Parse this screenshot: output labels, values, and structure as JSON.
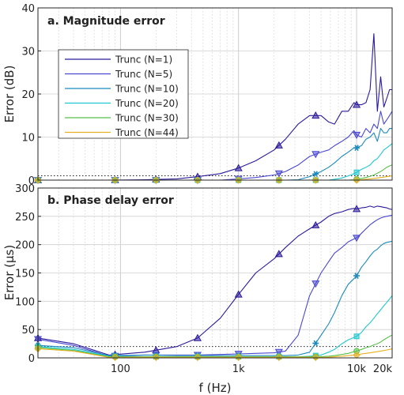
{
  "chart_data": [
    {
      "type": "line",
      "title": "a. Magnitude error",
      "xlabel": "",
      "ylabel": "Error (dB)",
      "xscale": "log",
      "xlim": [
        20,
        20000
      ],
      "ylim": [
        0,
        40
      ],
      "yticks": [
        "0",
        "10",
        "20",
        "30",
        "40"
      ],
      "grid": true,
      "legend_position": "upper-left",
      "threshold_line": 1,
      "x": [
        20,
        40,
        80,
        160,
        300,
        450,
        700,
        1000,
        1400,
        2000,
        2500,
        3200,
        4000,
        5000,
        5800,
        6500,
        7500,
        8500,
        9500,
        10000,
        11000,
        12000,
        13000,
        14000,
        15000,
        16000,
        17000,
        18000,
        19000,
        20000
      ],
      "markers_x": [
        20,
        90,
        200,
        450,
        1000,
        2200,
        4500,
        10000
      ],
      "series": [
        {
          "name": "Trunc (N=1)",
          "color": "#2a1a9a",
          "marker": "^",
          "values": [
            0,
            0,
            0,
            0.1,
            0.3,
            0.8,
            1.5,
            2.8,
            4.5,
            7,
            9.5,
            13,
            15,
            15,
            13.5,
            13,
            16,
            16,
            18,
            17.5,
            17.5,
            18,
            21,
            34,
            16,
            24,
            17,
            19,
            21,
            21
          ]
        },
        {
          "name": "Trunc (N=5)",
          "color": "#4a48d0",
          "marker": "v",
          "values": [
            0,
            0,
            0,
            0,
            0,
            0,
            0,
            0.3,
            0.6,
            1.2,
            2,
            3.5,
            5.5,
            6.5,
            7,
            8,
            9,
            10,
            11.5,
            10.5,
            10,
            12,
            11,
            13,
            12,
            16,
            13,
            14,
            15,
            16
          ]
        },
        {
          "name": "Trunc (N=10)",
          "color": "#1a8abf",
          "marker": "*",
          "values": [
            0,
            0,
            0,
            0,
            0,
            0,
            0,
            0,
            0,
            0,
            0,
            0.1,
            0.8,
            2,
            3,
            4,
            5.5,
            6.5,
            7.5,
            7.5,
            8,
            9.5,
            10,
            11,
            9,
            12,
            11,
            11,
            12,
            12
          ]
        },
        {
          "name": "Trunc (N=20)",
          "color": "#20c8d0",
          "marker": "s",
          "values": [
            0,
            0,
            0,
            0,
            0,
            0,
            0,
            0,
            0,
            0,
            0,
            0,
            0,
            0,
            0,
            0.2,
            0.5,
            1,
            1.5,
            1.8,
            2.5,
            3,
            3.5,
            4.5,
            5,
            6,
            7,
            7.5,
            8,
            8.5
          ]
        },
        {
          "name": "Trunc (N=30)",
          "color": "#58c04a",
          "marker": "o",
          "values": [
            0,
            0,
            0,
            0,
            0,
            0,
            0,
            0,
            0,
            0,
            0,
            0,
            0,
            0,
            0,
            0,
            0,
            0,
            0.1,
            0.2,
            0.4,
            0.6,
            0.9,
            1.2,
            1.6,
            2,
            2.5,
            3,
            3.3,
            3.5
          ]
        },
        {
          "name": "Trunc (N=44)",
          "color": "#e6b022",
          "marker": "d",
          "values": [
            0,
            0,
            0,
            0,
            0,
            0,
            0,
            0,
            0,
            0,
            0,
            0,
            0,
            0,
            0,
            0,
            0,
            0,
            0,
            0,
            0.1,
            0.2,
            0.3,
            0.4,
            0.5,
            0.6,
            0.7,
            0.8,
            0.9,
            1
          ]
        }
      ]
    },
    {
      "type": "line",
      "title": "b. Phase delay error",
      "xlabel": "f (Hz)",
      "ylabel": "Error (μs)",
      "xscale": "log",
      "xlim": [
        20,
        20000
      ],
      "ylim": [
        0,
        300
      ],
      "yticks": [
        "0",
        "50",
        "100",
        "150",
        "200",
        "250",
        "300"
      ],
      "xticks": [
        {
          "value": 100,
          "label": "100"
        },
        {
          "value": 1000,
          "label": "1k"
        },
        {
          "value": 10000,
          "label": "10k"
        },
        {
          "value": 20000,
          "label": "20k"
        }
      ],
      "grid": true,
      "threshold_line": 20,
      "x": [
        20,
        40,
        80,
        160,
        300,
        450,
        700,
        1000,
        1400,
        2000,
        2500,
        3200,
        4000,
        5000,
        5800,
        6500,
        7500,
        8500,
        9500,
        10000,
        11000,
        12000,
        13000,
        14000,
        15000,
        16000,
        17000,
        18000,
        19000,
        20000
      ],
      "markers_x": [
        20,
        90,
        200,
        450,
        1000,
        2200,
        4500,
        10000
      ],
      "series": [
        {
          "name": "Trunc (N=1)",
          "color": "#2a1a9a",
          "marker": "^",
          "values": [
            35,
            25,
            5,
            10,
            20,
            35,
            70,
            112,
            150,
            175,
            195,
            215,
            228,
            240,
            250,
            255,
            258,
            262,
            264,
            263,
            265,
            266,
            268,
            266,
            268,
            267,
            266,
            265,
            263,
            262
          ]
        },
        {
          "name": "Trunc (N=5)",
          "color": "#4a48d0",
          "marker": "v",
          "values": [
            33,
            22,
            3,
            5,
            5,
            5,
            6,
            7,
            8,
            9,
            12,
            40,
            110,
            150,
            170,
            185,
            195,
            205,
            210,
            212,
            220,
            228,
            235,
            240,
            244,
            247,
            249,
            250,
            251,
            252
          ]
        },
        {
          "name": "Trunc (N=10)",
          "color": "#1a8abf",
          "marker": "*",
          "values": [
            22,
            18,
            4,
            5,
            4,
            4,
            4,
            4,
            4,
            4,
            4,
            5,
            10,
            40,
            60,
            80,
            110,
            130,
            140,
            145,
            160,
            170,
            180,
            188,
            192,
            198,
            202,
            204,
            205,
            206
          ]
        },
        {
          "name": "Trunc (N=20)",
          "color": "#20c8d0",
          "marker": "s",
          "values": [
            20,
            15,
            3,
            2,
            2,
            2,
            2,
            2,
            2,
            2,
            2,
            2,
            3,
            5,
            10,
            15,
            25,
            32,
            36,
            38,
            45,
            55,
            62,
            70,
            78,
            85,
            92,
            98,
            104,
            110
          ]
        },
        {
          "name": "Trunc (N=30)",
          "color": "#58c04a",
          "marker": "o",
          "values": [
            18,
            13,
            2,
            2,
            2,
            2,
            2,
            2,
            2,
            2,
            2,
            2,
            2,
            2,
            3,
            4,
            6,
            8,
            11,
            12,
            15,
            18,
            20,
            23,
            25,
            28,
            32,
            35,
            38,
            40
          ]
        },
        {
          "name": "Trunc (N=44)",
          "color": "#e6b022",
          "marker": "d",
          "values": [
            16,
            12,
            1,
            1,
            1,
            1,
            1,
            1,
            1,
            1,
            1,
            1,
            1,
            1,
            1,
            2,
            3,
            4,
            5,
            5,
            7,
            8,
            9,
            10,
            11,
            12,
            13,
            14,
            15,
            16
          ]
        }
      ]
    }
  ]
}
